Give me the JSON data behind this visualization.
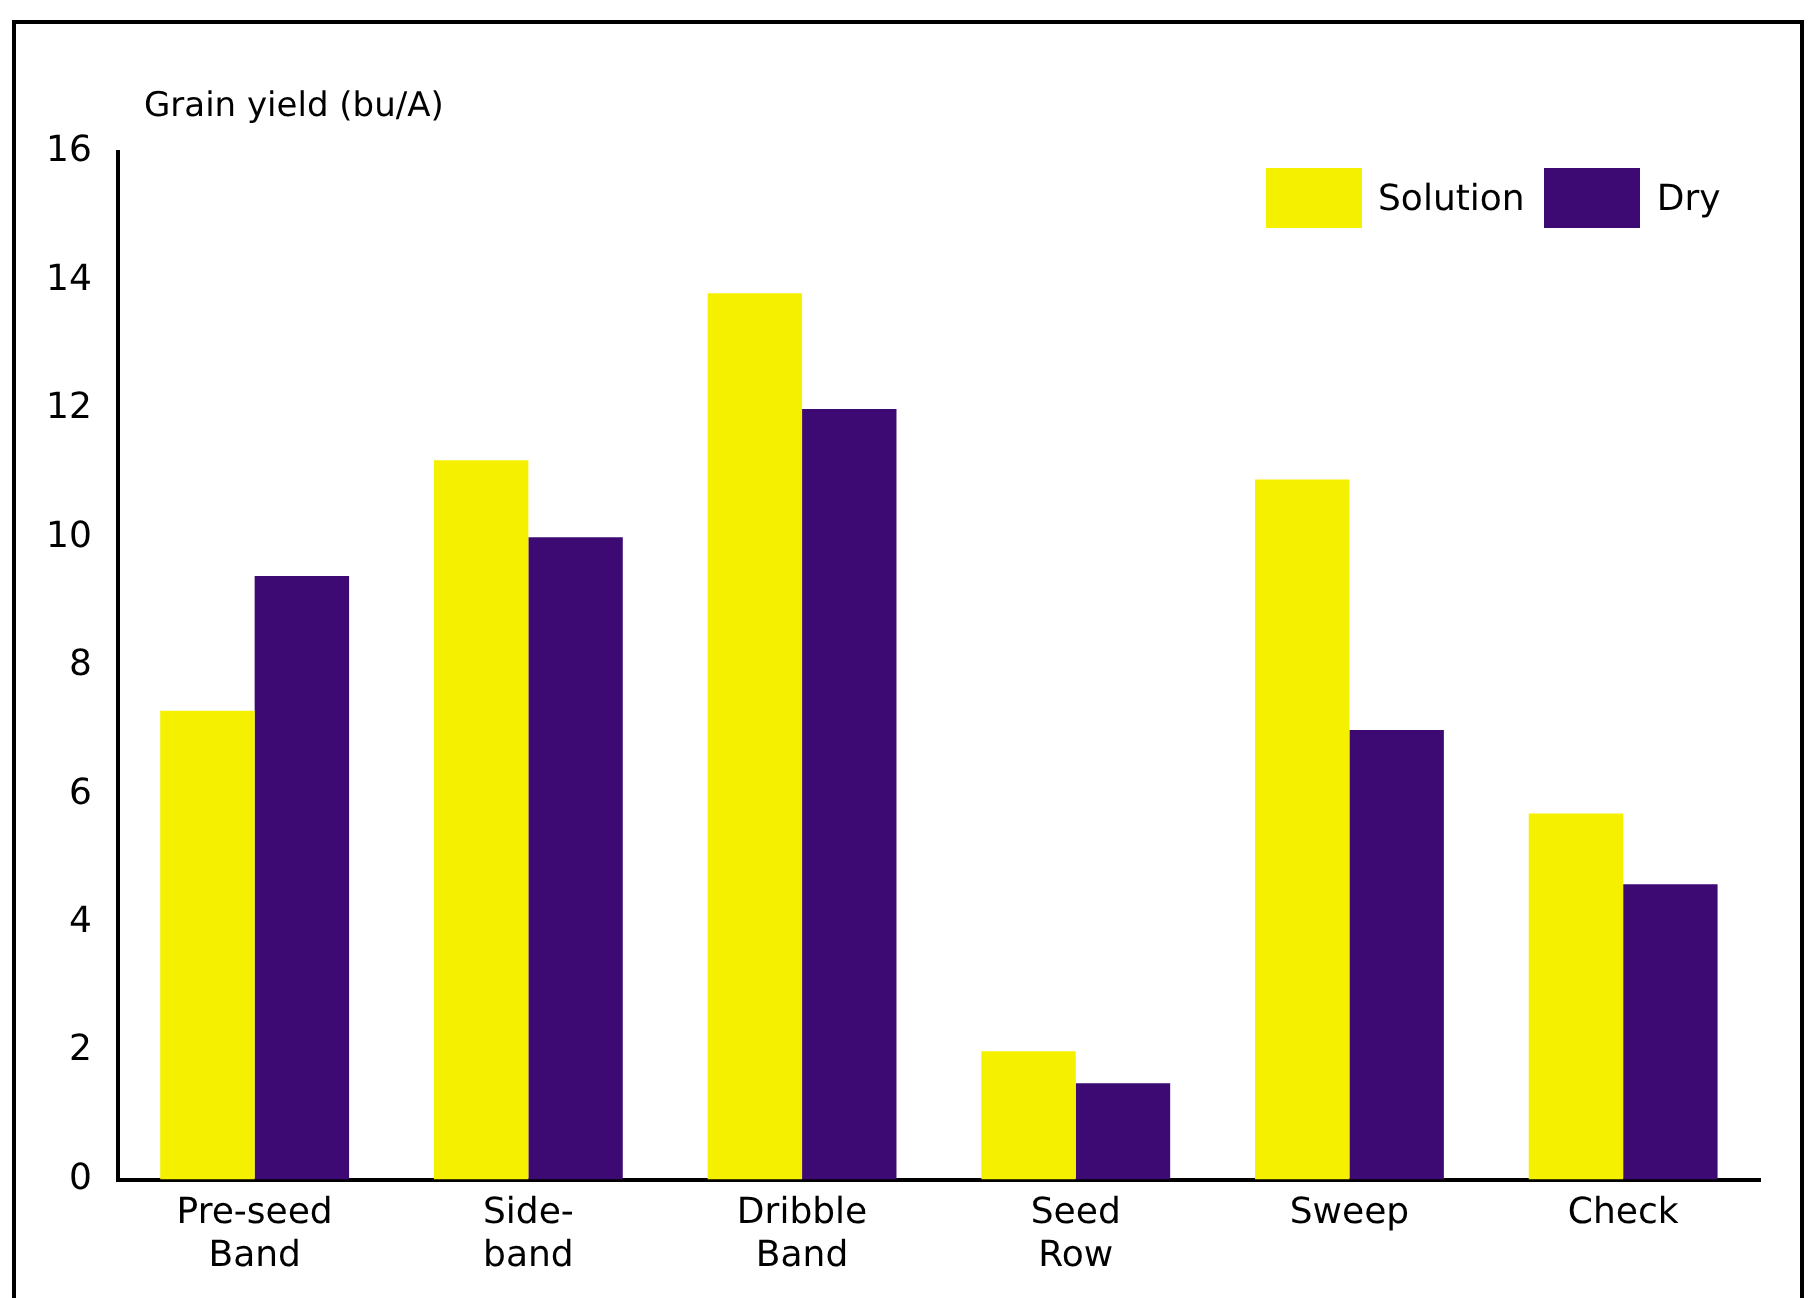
{
  "chart_data": {
    "type": "bar",
    "ylabel": "Grain yield (bu/A)",
    "categories": [
      "Pre-seed\nBand",
      "Side-\nband",
      "Dribble\nBand",
      "Seed\nRow",
      "Sweep",
      "Check"
    ],
    "series": [
      {
        "name": "Solution",
        "color": "#f5f000",
        "values": [
          7.3,
          11.2,
          13.8,
          2.0,
          10.9,
          5.7
        ]
      },
      {
        "name": "Dry",
        "color": "#3d0a73",
        "values": [
          9.4,
          10.0,
          12.0,
          1.5,
          7.0,
          4.6
        ]
      }
    ],
    "ylim": [
      0,
      16
    ],
    "yticks": [
      0,
      2,
      4,
      6,
      8,
      10,
      12,
      14,
      16
    ],
    "grid": false,
    "legend": "top right"
  }
}
